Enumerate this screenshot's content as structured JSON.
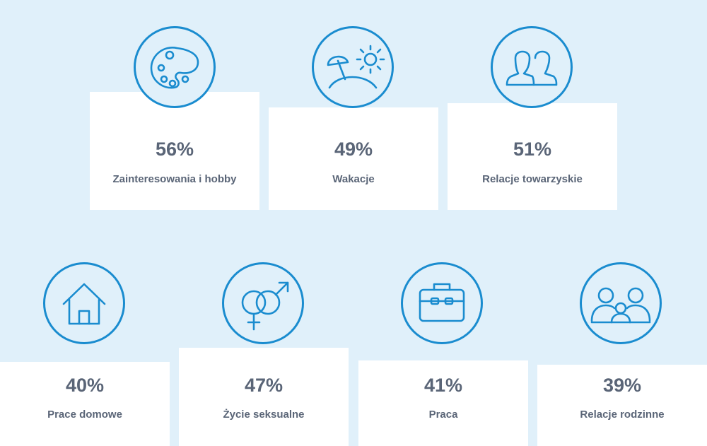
{
  "items": [
    {
      "percent": "56%",
      "label": "Zainteresowania i hobby",
      "icon": "palette-icon"
    },
    {
      "percent": "49%",
      "label": "Wakacje",
      "icon": "beach-umbrella-sun-icon"
    },
    {
      "percent": "51%",
      "label": "Relacje towarzyskie",
      "icon": "people-icon"
    },
    {
      "percent": "40%",
      "label": "Prace domowe",
      "icon": "house-icon"
    },
    {
      "percent": "47%",
      "label": "Życie seksualne",
      "icon": "gender-symbols-icon"
    },
    {
      "percent": "41%",
      "label": "Praca",
      "icon": "briefcase-icon"
    },
    {
      "percent": "39%",
      "label": "Relacje rodzinne",
      "icon": "family-icon"
    }
  ],
  "colors": {
    "background": "#e0f0fa",
    "accent": "#1a8ccf",
    "text": "#5a6577",
    "card": "#ffffff"
  }
}
